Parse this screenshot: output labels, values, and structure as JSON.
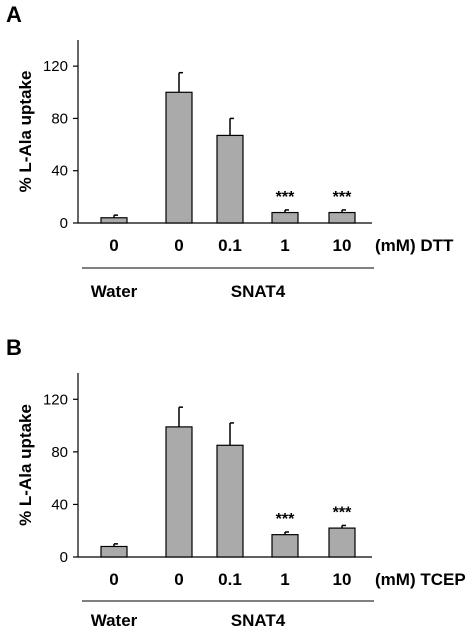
{
  "chart_data": [
    {
      "panel": "A",
      "type": "bar",
      "ylabel": "% L-Ala uptake",
      "ylim": [
        0,
        140
      ],
      "yticks": [
        "0",
        "40",
        "80",
        "120"
      ],
      "categories": [
        "0",
        "0",
        "0.1",
        "1",
        "10"
      ],
      "unit_label": "(mM) DTT",
      "values": [
        4,
        100,
        67,
        8,
        8
      ],
      "errors": [
        2,
        15,
        13,
        2,
        2
      ],
      "significance": [
        "",
        "",
        "",
        "***",
        "***"
      ],
      "groups": [
        {
          "label": "Water",
          "from": 0,
          "to": 0
        },
        {
          "label": "SNAT4",
          "from": 1,
          "to": 4
        }
      ],
      "bar_color": "#aaaaaa"
    },
    {
      "panel": "B",
      "type": "bar",
      "ylabel": "% L-Ala uptake",
      "ylim": [
        0,
        140
      ],
      "yticks": [
        "0",
        "40",
        "80",
        "120"
      ],
      "categories": [
        "0",
        "0",
        "0.1",
        "1",
        "10"
      ],
      "unit_label": "(mM) TCEP",
      "values": [
        8,
        99,
        85,
        17,
        22
      ],
      "errors": [
        2,
        15,
        17,
        2,
        2
      ],
      "significance": [
        "",
        "",
        "",
        "***",
        "***"
      ],
      "groups": [
        {
          "label": "Water",
          "from": 0,
          "to": 0
        },
        {
          "label": "SNAT4",
          "from": 1,
          "to": 4
        }
      ],
      "bar_color": "#aaaaaa"
    }
  ]
}
